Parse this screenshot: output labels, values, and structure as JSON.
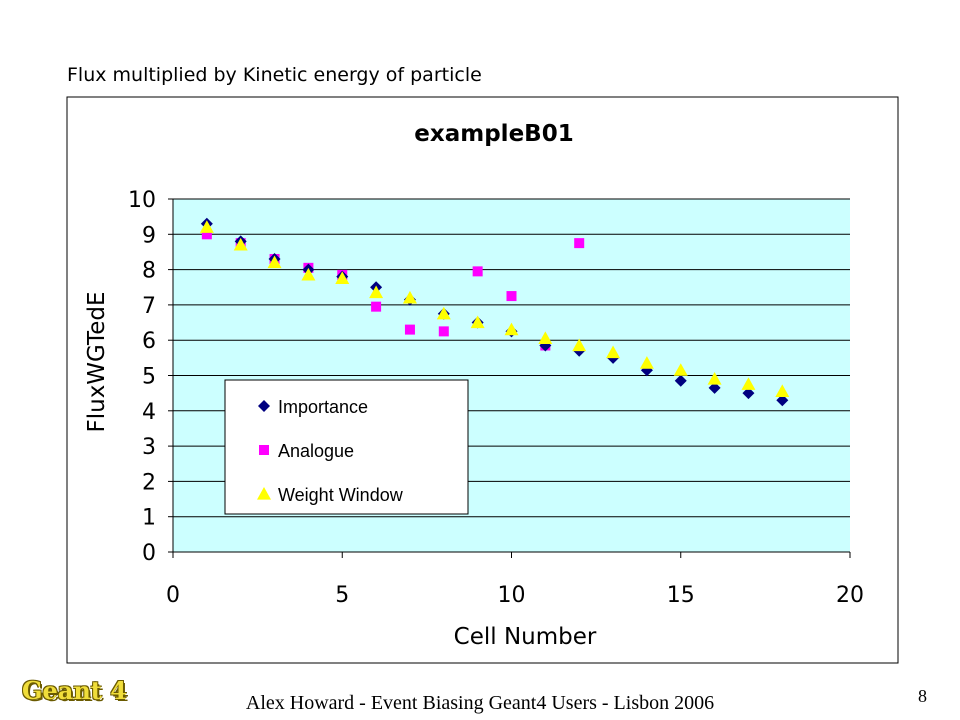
{
  "slide": {
    "caption": "Flux multiplied by Kinetic energy of particle",
    "logo_text": "Geant 4",
    "footer": "Alex Howard - Event Biasing Geant4 Users - Lisbon 2006",
    "page_number": "8"
  },
  "chart_data": {
    "type": "scatter",
    "title": "exampleB01",
    "xlabel": "Cell Number",
    "ylabel": "FluxWGTedE",
    "xlim": [
      0,
      20
    ],
    "ylim": [
      0,
      10
    ],
    "xticks": [
      0,
      5,
      10,
      15,
      20
    ],
    "yticks": [
      0,
      1,
      2,
      3,
      4,
      5,
      6,
      7,
      8,
      9,
      10
    ],
    "grid": "horizontal",
    "legend_position": "inside-lower-left",
    "plot_background": "#ccffff",
    "series": [
      {
        "name": "Importance",
        "marker": "diamond",
        "color": "#000080",
        "x": [
          1,
          2,
          3,
          4,
          5,
          6,
          7,
          8,
          9,
          10,
          11,
          12,
          13,
          14,
          15,
          16,
          17,
          18
        ],
        "y": [
          9.3,
          8.8,
          8.3,
          8.0,
          7.8,
          7.5,
          7.15,
          6.75,
          6.5,
          6.25,
          5.85,
          5.7,
          5.5,
          5.15,
          4.85,
          4.65,
          4.5,
          4.3
        ]
      },
      {
        "name": "Analogue",
        "marker": "square",
        "color": "#ff00ff",
        "x": [
          1,
          2,
          3,
          4,
          5,
          6,
          7,
          8,
          9,
          10,
          11,
          12
        ],
        "y": [
          9.0,
          8.75,
          8.3,
          8.05,
          7.85,
          6.95,
          6.3,
          6.25,
          7.95,
          7.25,
          5.85,
          8.75
        ]
      },
      {
        "name": "Weight Window",
        "marker": "triangle",
        "color": "#ffff00",
        "x": [
          1,
          2,
          3,
          4,
          5,
          6,
          7,
          8,
          9,
          10,
          11,
          12,
          13,
          14,
          15,
          16,
          17,
          18
        ],
        "y": [
          9.2,
          8.7,
          8.2,
          7.85,
          7.75,
          7.35,
          7.2,
          6.75,
          6.5,
          6.3,
          6.05,
          5.85,
          5.65,
          5.35,
          5.15,
          4.9,
          4.75,
          4.55
        ]
      }
    ]
  }
}
